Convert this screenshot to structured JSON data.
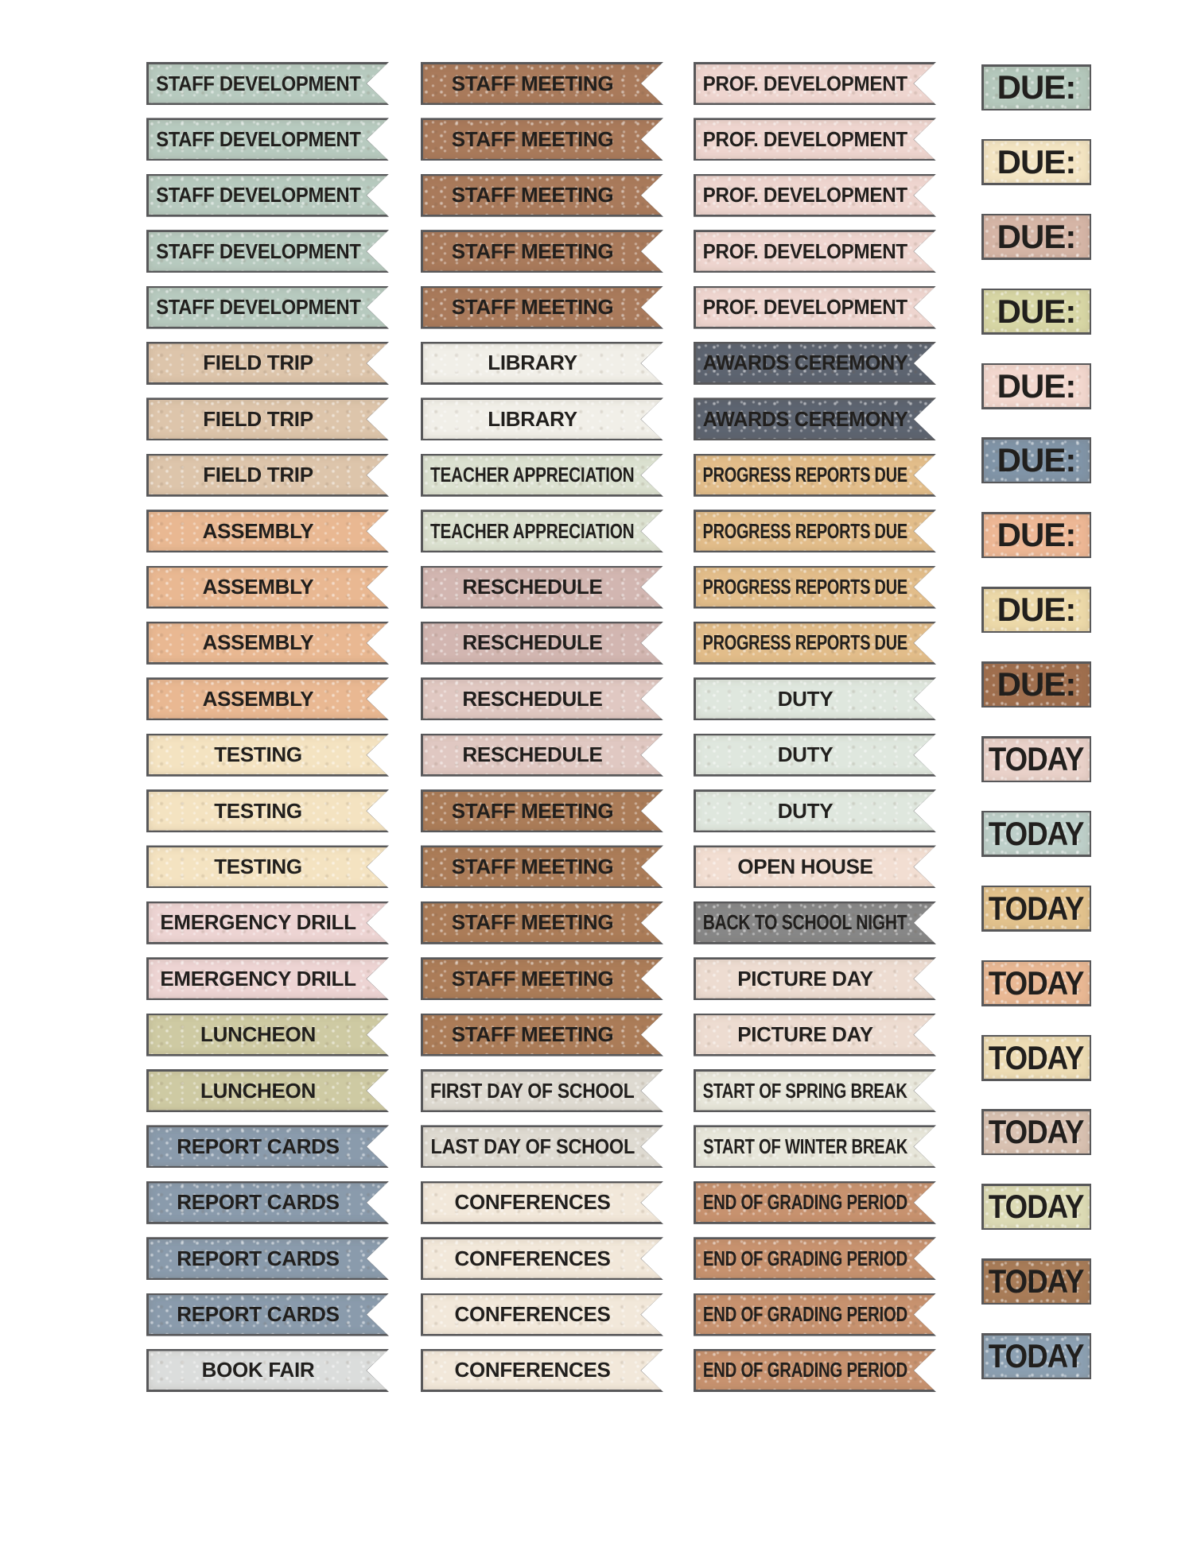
{
  "colors": {
    "page_bg": "#ffffff",
    "border": "#58585a",
    "text": "#211f1d"
  },
  "stickers": {
    "flag_columns": [
      {
        "name": "column-1",
        "items": [
          {
            "label": "STAFF DEVELOPMENT",
            "bg": "#b7cabf"
          },
          {
            "label": "STAFF DEVELOPMENT",
            "bg": "#b7cabf"
          },
          {
            "label": "STAFF DEVELOPMENT",
            "bg": "#b7cabf"
          },
          {
            "label": "STAFF DEVELOPMENT",
            "bg": "#b7cabf"
          },
          {
            "label": "STAFF DEVELOPMENT",
            "bg": "#b7cabf"
          },
          {
            "label": "FIELD TRIP",
            "bg": "#ddc5ab"
          },
          {
            "label": "FIELD TRIP",
            "bg": "#ddc5ab"
          },
          {
            "label": "FIELD TRIP",
            "bg": "#ddc5ab"
          },
          {
            "label": "ASSEMBLY",
            "bg": "#e9b892"
          },
          {
            "label": "ASSEMBLY",
            "bg": "#e9b892"
          },
          {
            "label": "ASSEMBLY",
            "bg": "#e9b892"
          },
          {
            "label": "ASSEMBLY",
            "bg": "#e9b892"
          },
          {
            "label": "TESTING",
            "bg": "#f4e3c1"
          },
          {
            "label": "TESTING",
            "bg": "#f4e3c1"
          },
          {
            "label": "TESTING",
            "bg": "#f4e3c1"
          },
          {
            "label": "EMERGENCY DRILL",
            "bg": "#edd4d3"
          },
          {
            "label": "EMERGENCY DRILL",
            "bg": "#edd4d3"
          },
          {
            "label": "LUNCHEON",
            "bg": "#cecaa3"
          },
          {
            "label": "LUNCHEON",
            "bg": "#cecaa3"
          },
          {
            "label": "REPORT CARDS",
            "bg": "#8a9bac"
          },
          {
            "label": "REPORT CARDS",
            "bg": "#8a9bac"
          },
          {
            "label": "REPORT CARDS",
            "bg": "#8a9bac"
          },
          {
            "label": "REPORT CARDS",
            "bg": "#8a9bac"
          },
          {
            "label": "BOOK FAIR",
            "bg": "#dbdddc"
          }
        ]
      },
      {
        "name": "column-2",
        "items": [
          {
            "label": "STAFF MEETING",
            "bg": "#a97a5b"
          },
          {
            "label": "STAFF MEETING",
            "bg": "#a97a5b"
          },
          {
            "label": "STAFF MEETING",
            "bg": "#a97a5b"
          },
          {
            "label": "STAFF MEETING",
            "bg": "#a97a5b"
          },
          {
            "label": "STAFF MEETING",
            "bg": "#a97a5b"
          },
          {
            "label": "LIBRARY",
            "bg": "#f1efe8"
          },
          {
            "label": "LIBRARY",
            "bg": "#f1efe8"
          },
          {
            "label": "TEACHER APPRECIATION",
            "bg": "#dbe1d0"
          },
          {
            "label": "TEACHER APPRECIATION",
            "bg": "#dbe1d0"
          },
          {
            "label": "RESCHEDULE",
            "bg": "#d2b6b1"
          },
          {
            "label": "RESCHEDULE",
            "bg": "#d2b6b1"
          },
          {
            "label": "RESCHEDULE",
            "bg": "#e0c8c2"
          },
          {
            "label": "RESCHEDULE",
            "bg": "#e0c8c2"
          },
          {
            "label": "STAFF MEETING",
            "bg": "#ab7c58"
          },
          {
            "label": "STAFF MEETING",
            "bg": "#ab7c58"
          },
          {
            "label": "STAFF MEETING",
            "bg": "#ab7c58"
          },
          {
            "label": "STAFF MEETING",
            "bg": "#ab7c58"
          },
          {
            "label": "STAFF MEETING",
            "bg": "#ab7c58"
          },
          {
            "label": "FIRST DAY OF SCHOOL",
            "bg": "#dedad1"
          },
          {
            "label": "LAST DAY OF SCHOOL",
            "bg": "#dedad1"
          },
          {
            "label": "CONFERENCES",
            "bg": "#f2e8da"
          },
          {
            "label": "CONFERENCES",
            "bg": "#f2e8da"
          },
          {
            "label": "CONFERENCES",
            "bg": "#f2e8da"
          },
          {
            "label": "CONFERENCES",
            "bg": "#f2e8da"
          }
        ]
      },
      {
        "name": "column-3",
        "items": [
          {
            "label": "PROF. DEVELOPMENT",
            "bg": "#eed5cf"
          },
          {
            "label": "PROF. DEVELOPMENT",
            "bg": "#eed5cf"
          },
          {
            "label": "PROF. DEVELOPMENT",
            "bg": "#eed5cf"
          },
          {
            "label": "PROF. DEVELOPMENT",
            "bg": "#eed5cf"
          },
          {
            "label": "PROF. DEVELOPMENT",
            "bg": "#eed5cf"
          },
          {
            "label": "AWARDS CEREMONY",
            "bg": "#5d6470"
          },
          {
            "label": "AWARDS CEREMONY",
            "bg": "#5d6470"
          },
          {
            "label": "PROGRESS REPORTS DUE",
            "bg": "#e2bd8a"
          },
          {
            "label": "PROGRESS REPORTS DUE",
            "bg": "#e2bd8a"
          },
          {
            "label": "PROGRESS REPORTS DUE",
            "bg": "#e2bd8a"
          },
          {
            "label": "PROGRESS REPORTS DUE",
            "bg": "#e2bd8a"
          },
          {
            "label": "DUTY",
            "bg": "#dfe7de"
          },
          {
            "label": "DUTY",
            "bg": "#dfe7de"
          },
          {
            "label": "DUTY",
            "bg": "#dfe7de"
          },
          {
            "label": "OPEN HOUSE",
            "bg": "#f2ded2"
          },
          {
            "label": "BACK TO SCHOOL NIGHT",
            "bg": "#878787"
          },
          {
            "label": "PICTURE DAY",
            "bg": "#eddcd1"
          },
          {
            "label": "PICTURE DAY",
            "bg": "#eddcd1"
          },
          {
            "label": "START OF SPRING BREAK",
            "bg": "#e7e6da"
          },
          {
            "label": "START OF WINTER BREAK",
            "bg": "#e7e6da"
          },
          {
            "label": "END OF GRADING PERIOD",
            "bg": "#c7926f"
          },
          {
            "label": "END OF GRADING PERIOD",
            "bg": "#c7926f"
          },
          {
            "label": "END OF GRADING PERIOD",
            "bg": "#c7926f"
          },
          {
            "label": "END OF GRADING PERIOD",
            "bg": "#c7926f"
          }
        ]
      }
    ],
    "tag_column": {
      "name": "column-4",
      "items": [
        {
          "label": "DUE:",
          "bg": "#b4c8bc"
        },
        {
          "label": "DUE:",
          "bg": "#f3e4c2"
        },
        {
          "label": "DUE:",
          "bg": "#d5b5a6"
        },
        {
          "label": "DUE:",
          "bg": "#d7d6a5"
        },
        {
          "label": "DUE:",
          "bg": "#f2d7ce"
        },
        {
          "label": "DUE:",
          "bg": "#8094a7"
        },
        {
          "label": "DUE:",
          "bg": "#edb795"
        },
        {
          "label": "DUE:",
          "bg": "#ecd9a9"
        },
        {
          "label": "DUE:",
          "bg": "#a06f4e"
        },
        {
          "label": "TODAY",
          "bg": "#e9d1c9"
        },
        {
          "label": "TODAY",
          "bg": "#bdcfc9"
        },
        {
          "label": "TODAY",
          "bg": "#e2c28d"
        },
        {
          "label": "TODAY",
          "bg": "#e9b894"
        },
        {
          "label": "TODAY",
          "bg": "#eddcb4"
        },
        {
          "label": "TODAY",
          "bg": "#d8c1b1"
        },
        {
          "label": "TODAY",
          "bg": "#dcdbb5"
        },
        {
          "label": "TODAY",
          "bg": "#a87c58"
        },
        {
          "label": "TODAY",
          "bg": "#8ca0b2"
        }
      ]
    }
  }
}
